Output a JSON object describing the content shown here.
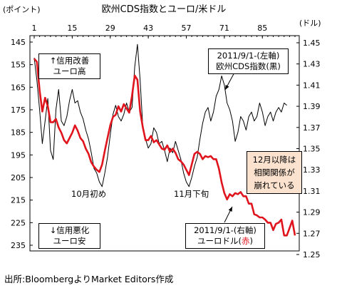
{
  "chart_data": {
    "type": "line",
    "title": "欧州CDS指数とユーロ/米ドル",
    "left_axis_unit": "(ポイント)",
    "right_axis_unit": "(ドル)",
    "x_ticks": [
      1,
      15,
      29,
      43,
      57,
      71,
      85
    ],
    "xlim": [
      1,
      97
    ],
    "left_axis": {
      "ticks": [
        145,
        155,
        165,
        175,
        185,
        195,
        205,
        215,
        225,
        235
      ],
      "reversed": true,
      "ylim": [
        145,
        235
      ]
    },
    "right_axis": {
      "ticks": [
        "1.45",
        "1.43",
        "1.41",
        "1.39",
        "1.37",
        "1.35",
        "1.33",
        "1.31",
        "1.29",
        "1.27",
        "1.25"
      ],
      "ylim": [
        1.25,
        1.45
      ]
    },
    "grid": false,
    "series": [
      {
        "name": "欧州CDS指数",
        "color": "#000000",
        "axis": "left",
        "values": [
          [
            1,
            152
          ],
          [
            2,
            162
          ],
          [
            3,
            175
          ],
          [
            4,
            190
          ],
          [
            5,
            180
          ],
          [
            6,
            170
          ],
          [
            7,
            193
          ],
          [
            8,
            197
          ],
          [
            9,
            175
          ],
          [
            10,
            166
          ],
          [
            11,
            180
          ],
          [
            12,
            182
          ],
          [
            13,
            178
          ],
          [
            14,
            171
          ],
          [
            15,
            166
          ],
          [
            16,
            172
          ],
          [
            17,
            171
          ],
          [
            18,
            176
          ],
          [
            19,
            179
          ],
          [
            20,
            184
          ],
          [
            21,
            188
          ],
          [
            22,
            194
          ],
          [
            23,
            201
          ],
          [
            24,
            203
          ],
          [
            25,
            207
          ],
          [
            26,
            209
          ],
          [
            27,
            203
          ],
          [
            28,
            196
          ],
          [
            29,
            186
          ],
          [
            30,
            177
          ],
          [
            31,
            173
          ],
          [
            32,
            178
          ],
          [
            33,
            180
          ],
          [
            34,
            177
          ],
          [
            35,
            172
          ],
          [
            36,
            176
          ],
          [
            37,
            174
          ],
          [
            38,
            156
          ],
          [
            39,
            146
          ],
          [
            40,
            162
          ],
          [
            41,
            183
          ],
          [
            42,
            188
          ],
          [
            43,
            192
          ],
          [
            44,
            190
          ],
          [
            45,
            183
          ],
          [
            46,
            185
          ],
          [
            47,
            190
          ],
          [
            48,
            189
          ],
          [
            49,
            193
          ],
          [
            50,
            198
          ],
          [
            51,
            192
          ],
          [
            52,
            194
          ],
          [
            53,
            189
          ],
          [
            54,
            193
          ],
          [
            55,
            197
          ],
          [
            56,
            203
          ],
          [
            57,
            207
          ],
          [
            58,
            209
          ],
          [
            59,
            205
          ],
          [
            60,
            200
          ],
          [
            61,
            196
          ],
          [
            62,
            188
          ],
          [
            63,
            181
          ],
          [
            64,
            176
          ],
          [
            65,
            174
          ],
          [
            66,
            180
          ],
          [
            67,
            176
          ],
          [
            68,
            169
          ],
          [
            69,
            166
          ],
          [
            70,
            160
          ],
          [
            71,
            164
          ],
          [
            72,
            172
          ],
          [
            73,
            175
          ],
          [
            74,
            180
          ],
          [
            75,
            189
          ],
          [
            76,
            185
          ],
          [
            77,
            178
          ],
          [
            78,
            180
          ],
          [
            79,
            184
          ],
          [
            80,
            178
          ],
          [
            81,
            176
          ],
          [
            82,
            180
          ],
          [
            83,
            178
          ],
          [
            84,
            172
          ],
          [
            85,
            176
          ],
          [
            86,
            182
          ],
          [
            87,
            178
          ],
          [
            88,
            176
          ],
          [
            89,
            180
          ],
          [
            90,
            176
          ],
          [
            91,
            174
          ],
          [
            92,
            176
          ],
          [
            93,
            172
          ],
          [
            94,
            173
          ]
        ]
      },
      {
        "name": "ユーロドル",
        "color": "#e0141c",
        "axis": "right",
        "values": [
          [
            1,
            1.435
          ],
          [
            2,
            1.432
          ],
          [
            3,
            1.405
          ],
          [
            4,
            1.385
          ],
          [
            5,
            1.398
          ],
          [
            6,
            1.39
          ],
          [
            7,
            1.375
          ],
          [
            8,
            1.375
          ],
          [
            9,
            1.378
          ],
          [
            10,
            1.37
          ],
          [
            11,
            1.365
          ],
          [
            12,
            1.358
          ],
          [
            13,
            1.355
          ],
          [
            14,
            1.36
          ],
          [
            15,
            1.365
          ],
          [
            16,
            1.372
          ],
          [
            17,
            1.367
          ],
          [
            18,
            1.36
          ],
          [
            19,
            1.357
          ],
          [
            20,
            1.35
          ],
          [
            21,
            1.345
          ],
          [
            22,
            1.337
          ],
          [
            23,
            1.333
          ],
          [
            24,
            1.33
          ],
          [
            25,
            1.328
          ],
          [
            26,
            1.335
          ],
          [
            27,
            1.348
          ],
          [
            28,
            1.36
          ],
          [
            29,
            1.372
          ],
          [
            30,
            1.38
          ],
          [
            31,
            1.382
          ],
          [
            32,
            1.39
          ],
          [
            33,
            1.385
          ],
          [
            34,
            1.392
          ],
          [
            35,
            1.388
          ],
          [
            36,
            1.384
          ],
          [
            37,
            1.4
          ],
          [
            38,
            1.419
          ],
          [
            39,
            1.415
          ],
          [
            40,
            1.385
          ],
          [
            41,
            1.37
          ],
          [
            42,
            1.358
          ],
          [
            43,
            1.358
          ],
          [
            44,
            1.362
          ],
          [
            45,
            1.356
          ],
          [
            46,
            1.358
          ],
          [
            47,
            1.354
          ],
          [
            48,
            1.35
          ],
          [
            49,
            1.349
          ],
          [
            50,
            1.353
          ],
          [
            51,
            1.347
          ],
          [
            52,
            1.35
          ],
          [
            53,
            1.346
          ],
          [
            54,
            1.34
          ],
          [
            55,
            1.338
          ],
          [
            56,
            1.335
          ],
          [
            57,
            1.33
          ],
          [
            58,
            1.325
          ],
          [
            59,
            1.335
          ],
          [
            60,
            1.345
          ],
          [
            61,
            1.347
          ],
          [
            62,
            1.345
          ],
          [
            63,
            1.34
          ],
          [
            64,
            1.343
          ],
          [
            65,
            1.342
          ],
          [
            66,
            1.343
          ],
          [
            67,
            1.34
          ],
          [
            68,
            1.34
          ],
          [
            69,
            1.331
          ],
          [
            70,
            1.318
          ],
          [
            71,
            1.308
          ],
          [
            72,
            1.302
          ],
          [
            73,
            1.307
          ],
          [
            74,
            1.305
          ],
          [
            75,
            1.308
          ],
          [
            76,
            1.307
          ],
          [
            77,
            1.309
          ],
          [
            78,
            1.305
          ],
          [
            79,
            1.305
          ],
          [
            80,
            1.298
          ],
          [
            81,
            1.298
          ],
          [
            82,
            1.288
          ],
          [
            83,
            1.287
          ],
          [
            84,
            1.285
          ],
          [
            85,
            1.285
          ],
          [
            86,
            1.283
          ],
          [
            87,
            1.28
          ],
          [
            88,
            1.28
          ],
          [
            89,
            1.273
          ],
          [
            90,
            1.279
          ],
          [
            91,
            1.28
          ],
          [
            92,
            1.283
          ],
          [
            93,
            1.268
          ],
          [
            94,
            1.268
          ],
          [
            95,
            1.275
          ],
          [
            96,
            1.282
          ],
          [
            97,
            1.268
          ]
        ]
      }
    ],
    "annotations": {
      "credit_improve": [
        "↑信用改善",
        "ユーロ高"
      ],
      "credit_worse": [
        "↓信用悪化",
        "ユーロ安"
      ],
      "cds_note": [
        "2011/9/1-(左軸)",
        "欧州CDS指数(黒)"
      ],
      "eur_note_line1": "2011/9/1-(右軸)",
      "eur_note_line2_prefix": "ユーロドル(",
      "eur_note_line2_red": "赤",
      "eur_note_line2_suffix": ")",
      "correlation_note": [
        "12月以降は",
        "相関関係が",
        "崩れている"
      ],
      "early_oct": "10月初め",
      "late_nov": "11月下旬"
    }
  },
  "source": "出所:BloombergよりMarket Editors作成"
}
